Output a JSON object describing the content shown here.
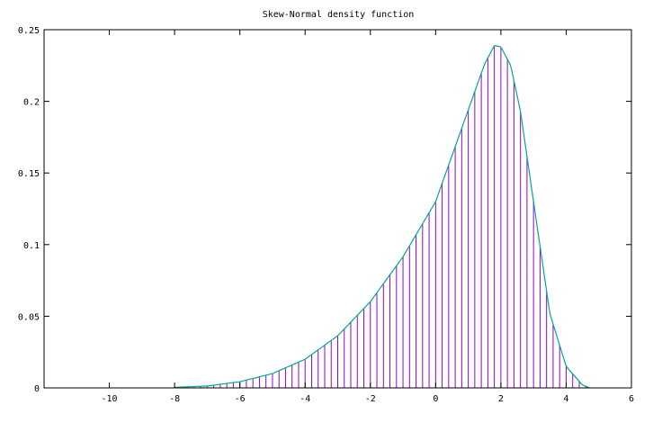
{
  "chart_data": {
    "type": "line",
    "title": "Skew-Normal density function",
    "xlabel": "",
    "ylabel": "",
    "xlim": [
      -12,
      6
    ],
    "ylim": [
      0,
      0.25
    ],
    "grid": false,
    "x_ticks": [
      -10,
      -8,
      -6,
      -4,
      -2,
      0,
      2,
      4,
      6
    ],
    "y_ticks": [
      0,
      0.05,
      0.1,
      0.15,
      0.2,
      0.25
    ],
    "x_tick_labels": [
      "-10",
      "-8",
      "-6",
      "-4",
      "-2",
      "0",
      "2",
      "4",
      "6"
    ],
    "y_tick_labels": [
      "0",
      "0.05",
      "0.1",
      "0.15",
      "0.2",
      "0.25"
    ],
    "impulse_range": [
      -8,
      4.6
    ],
    "impulse_step": 0.2,
    "series": [
      {
        "style": "impulses",
        "color": "#9900cc",
        "x": [
          -8,
          -7,
          -6,
          -5,
          -4,
          -3,
          -2,
          -1,
          0,
          1,
          1.5,
          1.8,
          2,
          2.3,
          2.6,
          3,
          3.5,
          4,
          4.5,
          4.7
        ],
        "y": [
          0.0004,
          0.0013,
          0.0043,
          0.01,
          0.02,
          0.0364,
          0.0602,
          0.0915,
          0.13,
          0.194,
          0.226,
          0.239,
          0.238,
          0.225,
          0.193,
          0.13,
          0.052,
          0.015,
          0.002,
          0.0003
        ]
      },
      {
        "style": "line",
        "color": "#00a98f",
        "x": [
          -8,
          -7,
          -6,
          -5,
          -4,
          -3,
          -2,
          -1,
          0,
          1,
          1.5,
          1.8,
          2,
          2.3,
          2.6,
          3,
          3.5,
          4,
          4.5,
          4.7
        ],
        "y": [
          0.0004,
          0.0013,
          0.0043,
          0.01,
          0.02,
          0.0364,
          0.0602,
          0.0915,
          0.13,
          0.194,
          0.226,
          0.239,
          0.238,
          0.225,
          0.193,
          0.13,
          0.052,
          0.015,
          0.002,
          0.0003
        ]
      }
    ]
  }
}
